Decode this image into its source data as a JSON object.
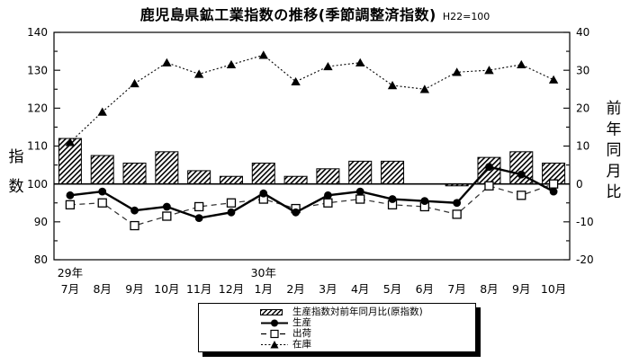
{
  "title": "鹿児島県鉱工業指数の推移(季節調整済指数)",
  "subtitle": "H22=100",
  "chart_data": {
    "type": "combo-bar-line",
    "categories": [
      "7月",
      "8月",
      "9月",
      "10月",
      "11月",
      "12月",
      "1月",
      "2月",
      "3月",
      "4月",
      "5月",
      "6月",
      "7月",
      "8月",
      "9月",
      "10月"
    ],
    "year_annotations": [
      {
        "index": 0,
        "label": "29年"
      },
      {
        "index": 6,
        "label": "30年"
      }
    ],
    "left_axis": {
      "title": "指数",
      "min": 80,
      "max": 140,
      "major_tick": 10,
      "minor_tick": 5,
      "tick_labels": [
        "140",
        "130",
        "120",
        "110",
        "100",
        "90",
        "80"
      ]
    },
    "right_axis": {
      "title": "前年同月比",
      "min": -20,
      "max": 40,
      "major_tick": 10,
      "minor_tick": 5,
      "tick_labels": [
        "40",
        "30",
        "20",
        "10",
        "0",
        "-10",
        "-20"
      ]
    },
    "series": [
      {
        "name": "生産指数対前年同月比(原指数)",
        "type": "bar",
        "axis": "right",
        "style": "hatched",
        "values": [
          12,
          7.5,
          5.5,
          8.5,
          3.5,
          2,
          5.5,
          2,
          4,
          6,
          6,
          0,
          -0.5,
          7,
          8.5,
          5.5
        ]
      },
      {
        "name": "生産",
        "type": "line",
        "axis": "left",
        "marker": "filled-circle",
        "line_style": "solid",
        "values": [
          97,
          98,
          93,
          94,
          91,
          92.5,
          97.5,
          92.5,
          97,
          98,
          96,
          95.5,
          95,
          104.5,
          102.5,
          98
        ]
      },
      {
        "name": "出荷",
        "type": "line",
        "axis": "left",
        "marker": "open-square",
        "line_style": "dashed",
        "values": [
          94.5,
          95,
          89,
          91.5,
          94,
          95,
          96,
          93.5,
          95,
          96,
          94.5,
          94,
          92,
          99.5,
          97,
          100
        ]
      },
      {
        "name": "在庫",
        "type": "line",
        "axis": "left",
        "marker": "filled-triangle",
        "line_style": "dotted",
        "values": [
          111,
          119,
          126.5,
          132,
          129,
          131.5,
          134,
          127,
          131,
          132,
          126,
          125,
          129.5,
          130,
          131.5,
          127.5
        ]
      }
    ],
    "grid": false,
    "legend_position": "bottom-center",
    "colors": {
      "foreground": "#000000",
      "background": "#ffffff"
    }
  }
}
